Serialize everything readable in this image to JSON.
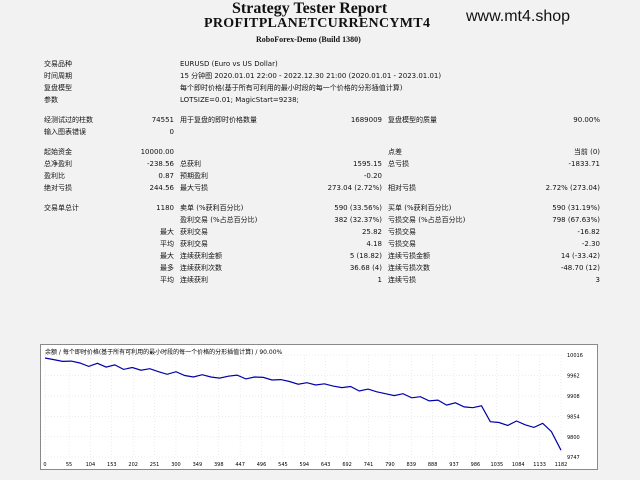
{
  "header": {
    "title": "Strategy Tester Report",
    "subtitle": "PROFITPLANETCURRENCYMT4",
    "server": "RoboForex-Demo (Build 1380)",
    "brand": "www.mt4.shop"
  },
  "report": {
    "symbol_label": "交易品种",
    "symbol_value": "EURUSD (Euro vs US Dollar)",
    "period_label": "时间周期",
    "period_value": "15 分钟图 2020.01.01 22:00 - 2022.12.30 21:00 (2020.01.01 - 2023.01.01)",
    "model_label": "复盘模型",
    "model_value": "每个即时价格(基于所有可利用的最小时段的每一个价格的分形插值计算)",
    "params_label": "参数",
    "params_value": "LOTSIZE=0.01; MagicStart=9238;",
    "bars_label": "经测试过的柱数",
    "bars_value": "74551",
    "ticks_label": "用于复盘的即时价格数量",
    "ticks_value": "1689009",
    "quality_label": "复盘模型的质量",
    "quality_value": "90.00%",
    "errors_label": "输入图表错误",
    "errors_value": "0",
    "deposit_label": "起始资金",
    "deposit_value": "10000.00",
    "spread_label": "点差",
    "spread_value": "当前 (0)",
    "netprofit_label": "总净盈利",
    "netprofit_value": "-238.56",
    "grossprofit_label": "总获利",
    "grossprofit_value": "1595.15",
    "grossloss_label": "总亏损",
    "grossloss_value": "-1833.71",
    "profitfactor_label": "盈利比",
    "profitfactor_value": "0.87",
    "expected_label": "预期盈利",
    "expected_value": "-0.20",
    "absdd_label": "绝对亏损",
    "absdd_value": "244.56",
    "maxdd_label": "最大亏损",
    "maxdd_value": "273.04 (2.72%)",
    "reldd_label": "相对亏损",
    "reldd_value": "2.72% (273.04)",
    "trades_label": "交易单总计",
    "trades_value": "1180",
    "short_label": "卖单 (%获利百分比)",
    "short_value": "590 (33.56%)",
    "long_label": "买单 (%获利百分比)",
    "long_value": "590 (31.19%)",
    "profittrades_label": "盈利交易 (%占总百分比)",
    "profittrades_value": "382 (32.37%)",
    "losstrades_label": "亏损交易 (%占总百分比)",
    "losstrades_value": "798 (67.63%)",
    "largest_label": "最大",
    "largest_profit_label": "获利交易",
    "largest_profit_value": "25.82",
    "largest_loss_label": "亏损交易",
    "largest_loss_value": "-16.82",
    "average_label": "平均",
    "average_profit_label": "获利交易",
    "average_profit_value": "4.18",
    "average_loss_label": "亏损交易",
    "average_loss_value": "-2.30",
    "max_label": "最大",
    "max_conswins_label": "连续获利金额",
    "max_conswins_value": "5 (18.82)",
    "max_consloss_label": "连续亏损金额",
    "max_consloss_value": "14 (-33.42)",
    "maximal_label": "最多",
    "maximal_consprofit_label": "连续获利次数",
    "maximal_consprofit_value": "36.68 (4)",
    "maximal_consloss_label": "连续亏损次数",
    "maximal_consloss_value": "-48.70 (12)",
    "avg_label": "平均",
    "avg_conswins_label": "连续获利",
    "avg_conswins_value": "1",
    "avg_consloss_label": "连续亏损",
    "avg_consloss_value": "3"
  },
  "chart_data": {
    "type": "line",
    "title": "余额 / 每个即时价格(基于所有可利用的最小时段的每一个价格的分形插值计算) / 90.00%",
    "x_ticks": [
      "0",
      "55",
      "104",
      "153",
      "202",
      "251",
      "300",
      "349",
      "398",
      "447",
      "496",
      "545",
      "594",
      "643",
      "692",
      "741",
      "790",
      "839",
      "888",
      "937",
      "986",
      "1035",
      "1084",
      "1133",
      "1182"
    ],
    "y_ticks": [
      "10016",
      "9962",
      "9908",
      "9854",
      "9800",
      "9747"
    ],
    "xlim": [
      0,
      1182
    ],
    "ylim": [
      9747,
      10016
    ],
    "line_color": "#0000aa",
    "x": [
      0,
      20,
      40,
      60,
      80,
      100,
      120,
      140,
      160,
      180,
      200,
      220,
      240,
      260,
      280,
      300,
      320,
      340,
      360,
      380,
      400,
      420,
      440,
      460,
      480,
      500,
      520,
      540,
      560,
      580,
      600,
      620,
      640,
      660,
      680,
      700,
      720,
      740,
      760,
      780,
      800,
      820,
      840,
      860,
      880,
      900,
      920,
      940,
      960,
      980,
      1000,
      1020,
      1040,
      1060,
      1080,
      1100,
      1120,
      1140,
      1160,
      1182
    ],
    "y": [
      10008,
      10004,
      9999,
      10000,
      9995,
      9986,
      9994,
      9984,
      9990,
      9978,
      9983,
      9976,
      9980,
      9972,
      9965,
      9972,
      9962,
      9958,
      9964,
      9958,
      9955,
      9960,
      9963,
      9953,
      9958,
      9957,
      9950,
      9951,
      9946,
      9939,
      9943,
      9937,
      9940,
      9934,
      9930,
      9933,
      9921,
      9926,
      9919,
      9914,
      9909,
      9914,
      9903,
      9906,
      9895,
      9897,
      9884,
      9890,
      9879,
      9877,
      9882,
      9840,
      9838,
      9830,
      9842,
      9832,
      9825,
      9836,
      9814,
      9765
    ]
  }
}
